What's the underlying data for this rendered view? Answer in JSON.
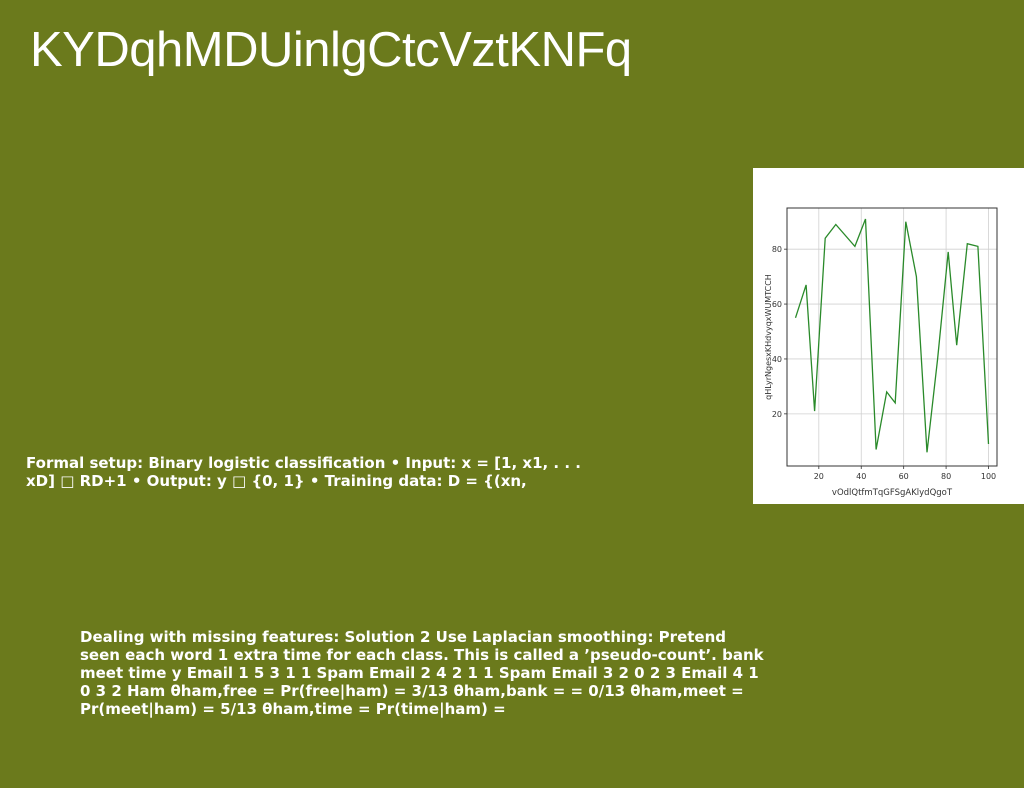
{
  "title": "KYDqhMDUinlgCtcVztKNFq",
  "paragraph1": "Formal setup: Binary logistic classification • Input: x = [1, x1, . . . xD] □ RD+1 • Output: y □ {0, 1} • Training data: D = {(xn,",
  "paragraph2": "Dealing with missing features: Solution 2 Use Laplacian smoothing: Pretend seen each word 1 extra time for each class. This is called a ’pseudo-count’. bank meet time y Email 1 5 3 1 1 Spam Email 2 4 2 1 1 Spam Email 3 2 0 2 3 Email 4 1 0 3 2 Ham θham,free = Pr(free|ham) = 3/13 θham,bank = = 0/13 θham,meet = Pr(meet|ham) = 5/13 θham,time = Pr(time|ham) =",
  "chart_data": {
    "type": "line",
    "xlabel": "vOdlQtfmTqGFSgAKlydQgoT",
    "ylabel": "qHLyrNgesxKHdvyqxWUMTCCH",
    "xlim": [
      5,
      104
    ],
    "ylim": [
      1,
      95
    ],
    "xticks": [
      20,
      40,
      60,
      80,
      100
    ],
    "yticks": [
      20,
      40,
      60,
      80
    ],
    "grid": true,
    "color": "#2a8a2a",
    "x": [
      9,
      14,
      18,
      23,
      28,
      37,
      42,
      47,
      52,
      56,
      61,
      66,
      71,
      76,
      81,
      85,
      90,
      95,
      100
    ],
    "y": [
      55,
      67,
      21,
      84,
      89,
      81,
      91,
      7,
      28,
      24,
      90,
      70,
      6,
      40,
      79,
      45,
      82,
      81,
      9
    ]
  }
}
